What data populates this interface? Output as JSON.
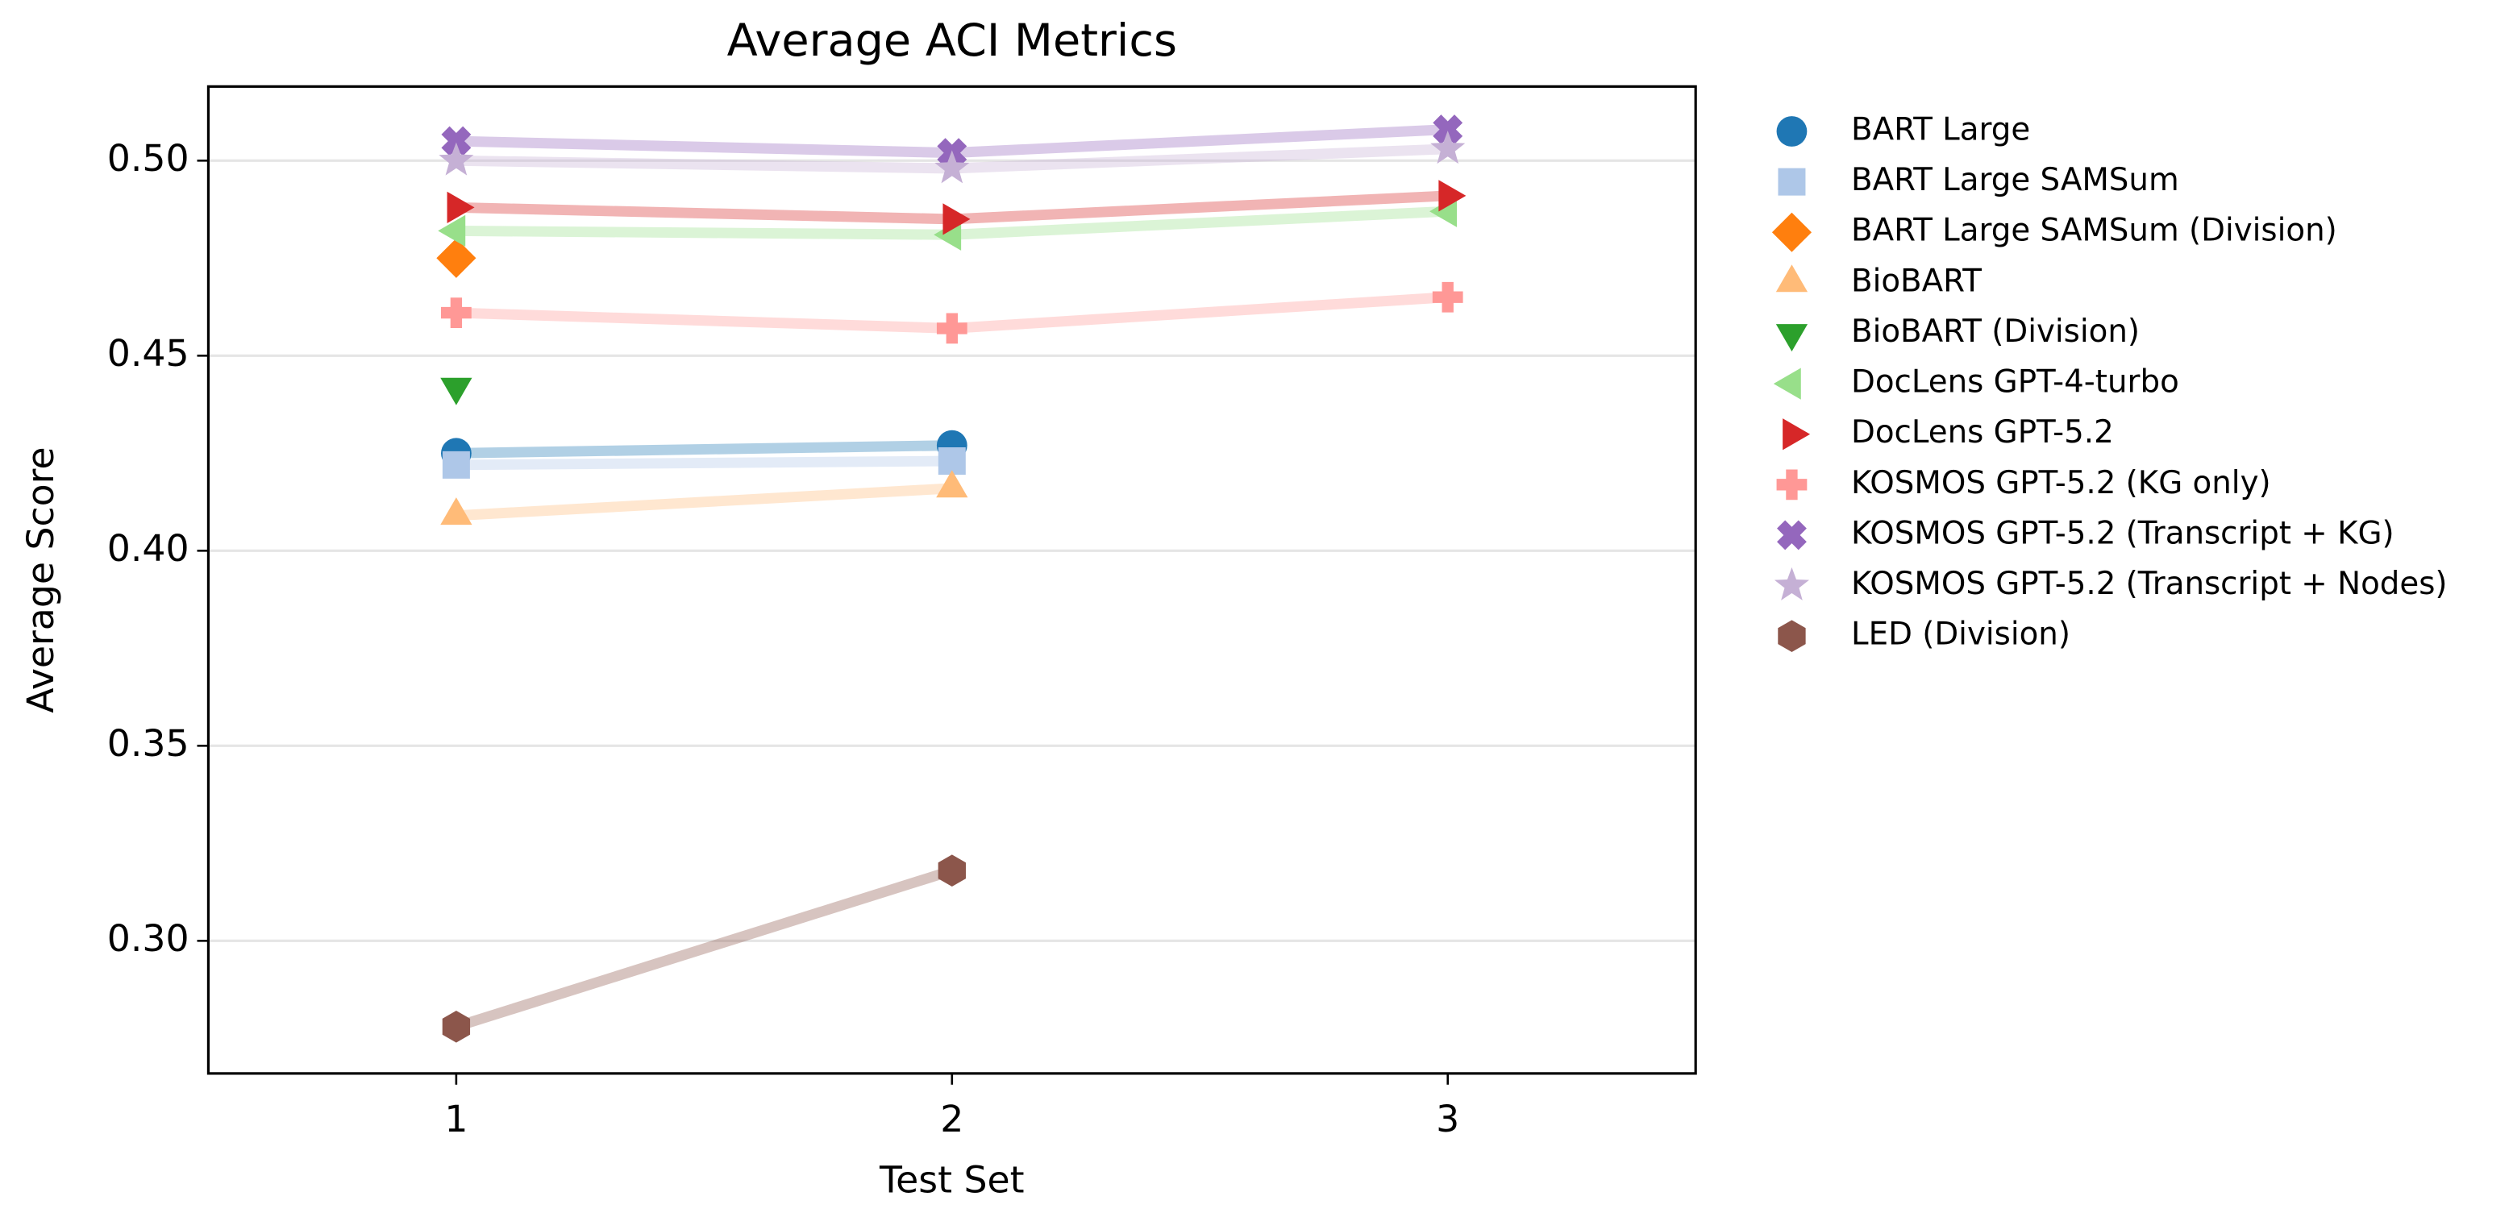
{
  "chart_data": {
    "type": "line",
    "title": "Average ACI Metrics",
    "x_label": "Test Set",
    "y_label": "Average Score",
    "x": [
      1,
      2,
      3
    ],
    "xlim": [
      0.5,
      3.5
    ],
    "xticks": [
      1,
      2,
      3
    ],
    "ylim": [
      0.266,
      0.519
    ],
    "yticks": [
      {
        "value": 0.3,
        "label": "0.30"
      },
      0.35,
      {
        "value": 0.4,
        "label": "0.40"
      },
      0.45,
      {
        "value": 0.5,
        "label": "0.50"
      }
    ],
    "grid": "y",
    "legend": "outside right",
    "series": [
      {
        "name": "BART Large",
        "color": "#1f77b4",
        "marker": "circle",
        "values": [
          0.425,
          0.427,
          null
        ]
      },
      {
        "name": "BART Large SAMSum",
        "color": "#aec7e8",
        "marker": "square",
        "values": [
          0.422,
          0.423,
          null
        ]
      },
      {
        "name": "BART Large SAMSum (Division)",
        "color": "#ff7f0e",
        "marker": "diamond",
        "values": [
          0.475,
          null,
          null
        ]
      },
      {
        "name": "BioBART",
        "color": "#ffbb78",
        "marker": "triangle-up",
        "values": [
          0.409,
          0.416,
          null
        ]
      },
      {
        "name": "BioBART (Division)",
        "color": "#2ca02c",
        "marker": "triangle-down",
        "values": [
          0.442,
          null,
          null
        ]
      },
      {
        "name": "DocLens GPT-4-turbo",
        "color": "#98df8a",
        "marker": "triangle-left",
        "values": [
          0.482,
          0.481,
          0.487
        ]
      },
      {
        "name": "DocLens GPT-5.2",
        "color": "#d62728",
        "marker": "triangle-right",
        "values": [
          0.488,
          0.485,
          0.491
        ]
      },
      {
        "name": "KOSMOS GPT-5.2 (KG only)",
        "color": "#ff9896",
        "marker": "plus",
        "values": [
          0.461,
          0.457,
          0.465
        ]
      },
      {
        "name": "KOSMOS GPT-5.2 (Transcript + KG)",
        "color": "#9467bd",
        "marker": "x",
        "values": [
          0.505,
          0.502,
          0.508
        ]
      },
      {
        "name": "KOSMOS GPT-5.2 (Transcript + Nodes)",
        "color": "#c5b0d5",
        "marker": "star",
        "values": [
          0.5,
          0.498,
          0.503
        ]
      },
      {
        "name": "LED (Division)",
        "color": "#8c564b",
        "marker": "hexagon",
        "values": [
          0.278,
          0.318,
          null
        ]
      }
    ]
  }
}
